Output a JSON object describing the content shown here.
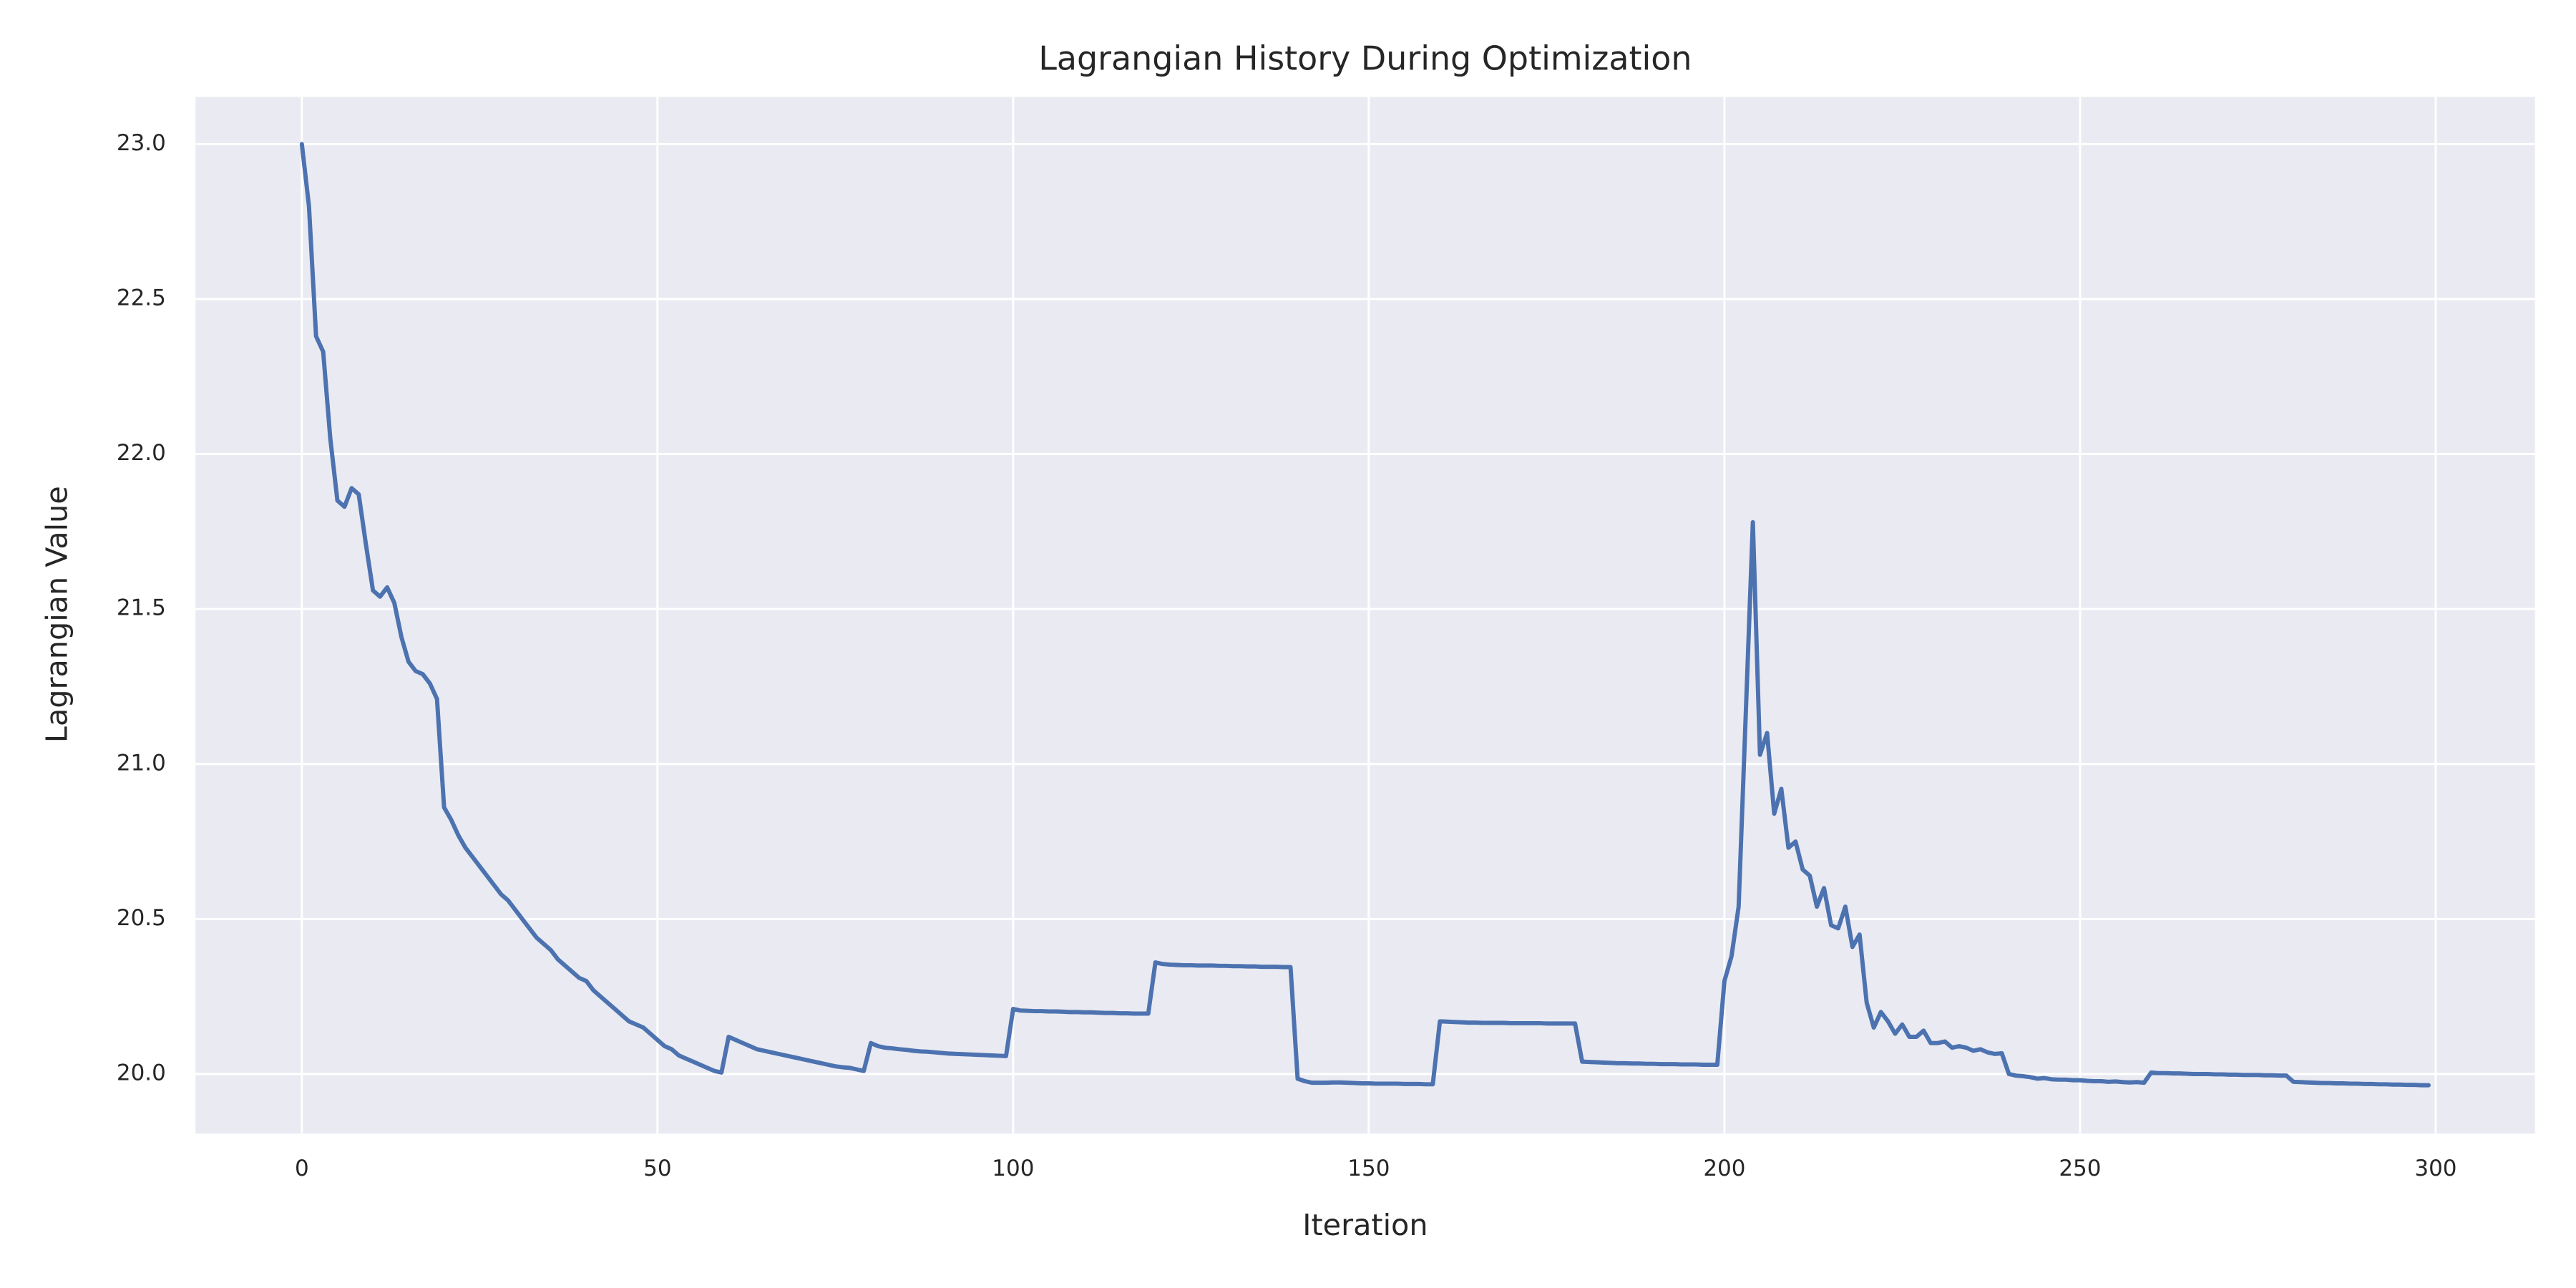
{
  "chart_data": {
    "type": "line",
    "title": "Lagrangian History During Optimization",
    "xlabel": "Iteration",
    "ylabel": "Lagrangian Value",
    "color": "#4c72b0",
    "grid": true,
    "xlim": [
      -14.95,
      313.95
    ],
    "ylim": [
      19.808,
      23.152
    ],
    "xticks": [
      0,
      50,
      100,
      150,
      200,
      250,
      300
    ],
    "yticks": [
      {
        "value": 20,
        "label": "20.0"
      },
      20.5,
      {
        "value": 21,
        "label": "21.0"
      },
      21.5,
      {
        "value": 22,
        "label": "22.0"
      },
      22.5,
      {
        "value": 23,
        "label": "23.0"
      }
    ],
    "x": [
      0,
      1,
      2,
      3,
      4,
      5,
      6,
      7,
      8,
      9,
      10,
      11,
      12,
      13,
      14,
      15,
      16,
      17,
      18,
      19,
      20,
      21,
      22,
      23,
      24,
      25,
      26,
      27,
      28,
      29,
      30,
      31,
      32,
      33,
      34,
      35,
      36,
      37,
      38,
      39,
      40,
      41,
      42,
      43,
      44,
      45,
      46,
      47,
      48,
      49,
      50,
      51,
      52,
      53,
      54,
      55,
      56,
      57,
      58,
      59,
      60,
      61,
      62,
      63,
      64,
      65,
      66,
      67,
      68,
      69,
      70,
      71,
      72,
      73,
      74,
      75,
      76,
      77,
      78,
      79,
      80,
      81,
      82,
      83,
      84,
      85,
      86,
      87,
      88,
      89,
      90,
      91,
      92,
      93,
      94,
      95,
      96,
      97,
      98,
      99,
      100,
      101,
      102,
      103,
      104,
      105,
      106,
      107,
      108,
      109,
      110,
      111,
      112,
      113,
      114,
      115,
      116,
      117,
      118,
      119,
      120,
      121,
      122,
      123,
      124,
      125,
      126,
      127,
      128,
      129,
      130,
      131,
      132,
      133,
      134,
      135,
      136,
      137,
      138,
      139,
      140,
      141,
      142,
      143,
      144,
      145,
      146,
      147,
      148,
      149,
      150,
      151,
      152,
      153,
      154,
      155,
      156,
      157,
      158,
      159,
      160,
      161,
      162,
      163,
      164,
      165,
      166,
      167,
      168,
      169,
      170,
      171,
      172,
      173,
      174,
      175,
      176,
      177,
      178,
      179,
      180,
      181,
      182,
      183,
      184,
      185,
      186,
      187,
      188,
      189,
      190,
      191,
      192,
      193,
      194,
      195,
      196,
      197,
      198,
      199,
      200,
      201,
      202,
      203,
      204,
      205,
      206,
      207,
      208,
      209,
      210,
      211,
      212,
      213,
      214,
      215,
      216,
      217,
      218,
      219,
      220,
      221,
      222,
      223,
      224,
      225,
      226,
      227,
      228,
      229,
      230,
      231,
      232,
      233,
      234,
      235,
      236,
      237,
      238,
      239,
      240,
      241,
      242,
      243,
      244,
      245,
      246,
      247,
      248,
      249,
      250,
      251,
      252,
      253,
      254,
      255,
      256,
      257,
      258,
      259,
      260,
      261,
      262,
      263,
      264,
      265,
      266,
      267,
      268,
      269,
      270,
      271,
      272,
      273,
      274,
      275,
      276,
      277,
      278,
      279,
      280,
      281,
      282,
      283,
      284,
      285,
      286,
      287,
      288,
      289,
      290,
      291,
      292,
      293,
      294,
      295,
      296,
      297,
      298,
      299
    ],
    "values": [
      23.0,
      22.8,
      22.38,
      22.33,
      22.05,
      21.85,
      21.83,
      21.89,
      21.87,
      21.71,
      21.56,
      21.54,
      21.57,
      21.52,
      21.41,
      21.33,
      21.3,
      21.29,
      21.26,
      21.21,
      20.86,
      20.82,
      20.77,
      20.73,
      20.7,
      20.67,
      20.64,
      20.61,
      20.58,
      20.56,
      20.53,
      20.5,
      20.47,
      20.44,
      20.42,
      20.4,
      20.37,
      20.35,
      20.33,
      20.31,
      20.3,
      20.27,
      20.25,
      20.23,
      20.21,
      20.19,
      20.17,
      20.16,
      20.15,
      20.13,
      20.11,
      20.09,
      20.08,
      20.06,
      20.05,
      20.04,
      20.03,
      20.02,
      20.01,
      20.005,
      20.12,
      20.11,
      20.1,
      20.09,
      20.08,
      20.075,
      20.07,
      20.065,
      20.06,
      20.055,
      20.05,
      20.045,
      20.04,
      20.035,
      20.03,
      20.025,
      20.022,
      20.02,
      20.015,
      20.01,
      20.1,
      20.09,
      20.085,
      20.083,
      20.08,
      20.078,
      20.075,
      20.073,
      20.072,
      20.07,
      20.068,
      20.066,
      20.065,
      20.064,
      20.063,
      20.062,
      20.061,
      20.06,
      20.059,
      20.058,
      20.21,
      20.205,
      20.204,
      20.203,
      20.203,
      20.202,
      20.202,
      20.201,
      20.2,
      20.2,
      20.199,
      20.199,
      20.198,
      20.197,
      20.197,
      20.196,
      20.196,
      20.195,
      20.195,
      20.195,
      20.36,
      20.355,
      20.353,
      20.352,
      20.351,
      20.351,
      20.35,
      20.35,
      20.35,
      20.349,
      20.349,
      20.348,
      20.348,
      20.347,
      20.347,
      20.346,
      20.346,
      20.346,
      20.345,
      20.345,
      19.985,
      19.977,
      19.972,
      19.972,
      19.972,
      19.973,
      19.973,
      19.972,
      19.971,
      19.97,
      19.97,
      19.969,
      19.969,
      19.969,
      19.969,
      19.968,
      19.968,
      19.968,
      19.967,
      19.967,
      20.17,
      20.169,
      20.168,
      20.167,
      20.166,
      20.166,
      20.165,
      20.165,
      20.165,
      20.165,
      20.164,
      20.164,
      20.164,
      20.164,
      20.164,
      20.163,
      20.163,
      20.163,
      20.163,
      20.163,
      20.04,
      20.039,
      20.038,
      20.037,
      20.036,
      20.035,
      20.035,
      20.034,
      20.034,
      20.033,
      20.033,
      20.032,
      20.032,
      20.032,
      20.031,
      20.031,
      20.031,
      20.03,
      20.03,
      20.03,
      20.3,
      20.38,
      20.54,
      21.16,
      21.78,
      21.03,
      21.1,
      20.84,
      20.92,
      20.73,
      20.75,
      20.66,
      20.64,
      20.54,
      20.6,
      20.48,
      20.47,
      20.54,
      20.41,
      20.45,
      20.23,
      20.15,
      20.2,
      20.17,
      20.13,
      20.16,
      20.12,
      20.12,
      20.14,
      20.1,
      20.1,
      20.105,
      20.085,
      20.09,
      20.085,
      20.075,
      20.08,
      20.07,
      20.065,
      20.067,
      20.0,
      19.995,
      19.993,
      19.99,
      19.985,
      19.987,
      19.983,
      19.982,
      19.982,
      19.98,
      19.98,
      19.978,
      19.977,
      19.977,
      19.975,
      19.976,
      19.974,
      19.973,
      19.974,
      19.972,
      20.005,
      20.003,
      20.003,
      20.002,
      20.002,
      20.001,
      20.0,
      20.0,
      20.0,
      19.999,
      19.999,
      19.998,
      19.998,
      19.997,
      19.997,
      19.997,
      19.996,
      19.996,
      19.995,
      19.995,
      19.975,
      19.974,
      19.973,
      19.972,
      19.971,
      19.971,
      19.97,
      19.97,
      19.969,
      19.969,
      19.968,
      19.968,
      19.967,
      19.967,
      19.966,
      19.966,
      19.965,
      19.965,
      19.964,
      19.964
    ]
  }
}
